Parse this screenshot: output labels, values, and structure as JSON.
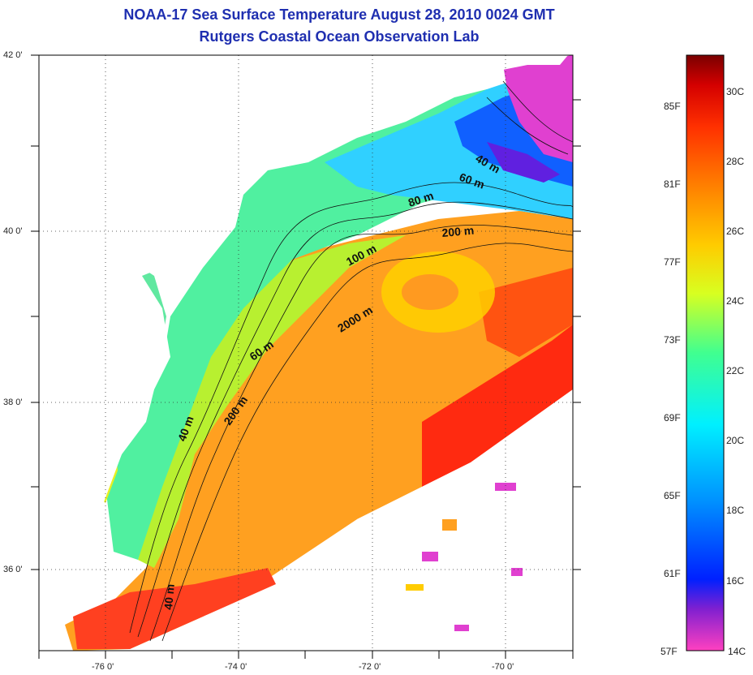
{
  "title": {
    "line1": "NOAA-17 Sea Surface Temperature August 28, 2010 0024 GMT",
    "line2": "Rutgers Coastal Ocean Observation Lab"
  },
  "axes": {
    "lon_labels": [
      "-76 0'",
      "-74 0'",
      "-72 0'",
      "-70 0'"
    ],
    "lat_labels": [
      "42 0'",
      "40 0'",
      "38 0'",
      "36 0'"
    ]
  },
  "contour_labels": [
    "40 m",
    "60 m",
    "80 m",
    "200 m",
    "100 m",
    "2000 m",
    "60 m",
    "200 m",
    "40 m",
    "40 m"
  ],
  "colorbar": {
    "fahrenheit": [
      "85F",
      "81F",
      "77F",
      "73F",
      "69F",
      "65F",
      "61F",
      "57F"
    ],
    "celsius": [
      "30C",
      "28C",
      "26C",
      "24C",
      "22C",
      "20C",
      "18C",
      "16C",
      "14C"
    ],
    "colors": [
      "#7a0000",
      "#d40000",
      "#ff3000",
      "#ff8000",
      "#ffcc00",
      "#d8ff20",
      "#40ff90",
      "#00f0ff",
      "#0090ff",
      "#0020ff",
      "#6020d0",
      "#ff40c0"
    ]
  }
}
